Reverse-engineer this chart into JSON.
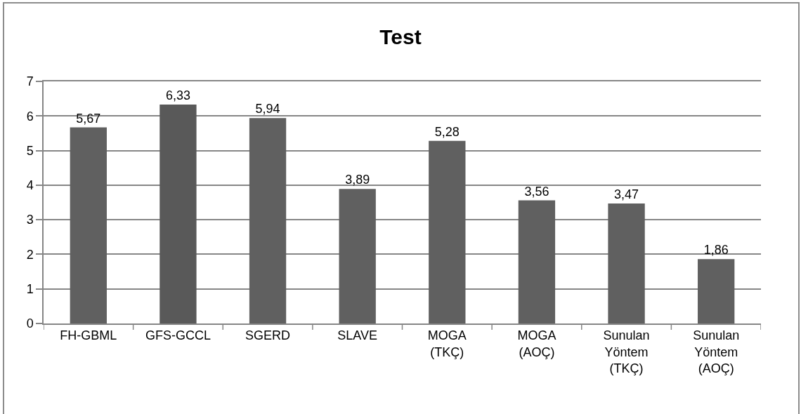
{
  "chart_data": {
    "type": "bar",
    "title": "Test",
    "categories": [
      "FH-GBML",
      "GFS-GCCL",
      "SGERD",
      "SLAVE",
      "MOGA (TKÇ)",
      "MOGA (AOÇ)",
      "Sunulan Yöntem (TKÇ)",
      "Sunulan Yöntem (AOÇ)"
    ],
    "values": [
      5.67,
      6.33,
      5.94,
      3.89,
      5.28,
      3.56,
      3.47,
      1.86
    ],
    "value_labels": [
      "5,67",
      "6,33",
      "5,94",
      "3,89",
      "5,28",
      "3,56",
      "3,47",
      "1,86"
    ],
    "colors": [
      "#606060",
      "#595959",
      "#606060",
      "#606060",
      "#606060",
      "#606060",
      "#606060",
      "#606060"
    ],
    "ylim": [
      0,
      7
    ],
    "yticks": [
      0,
      1,
      2,
      3,
      4,
      5,
      6,
      7
    ],
    "grid": "y"
  }
}
